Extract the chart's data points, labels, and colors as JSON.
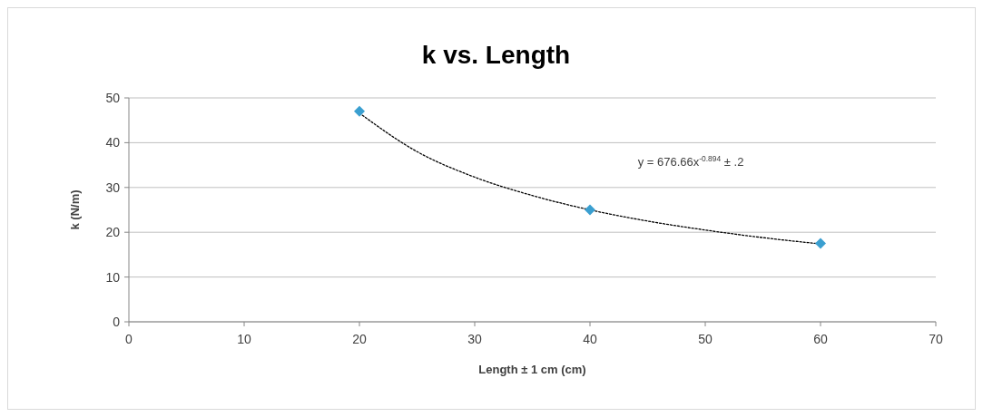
{
  "chart_data": {
    "type": "scatter",
    "title": "k vs. Length",
    "xlabel": "Length ± 1 cm (cm)",
    "ylabel": "k (N/m)",
    "x": [
      20,
      40,
      60
    ],
    "series": [
      {
        "color": "#3a9fd0",
        "marker": "diamond",
        "values": [
          47,
          25,
          17.5
        ]
      },
      {
        "type": "line",
        "color": "#000000",
        "line_style": "dotted",
        "marker": "none",
        "x": [
          20,
          25,
          30,
          35,
          40,
          45,
          50,
          55,
          60
        ],
        "values": [
          46.6,
          38,
          32.3,
          28.2,
          25,
          22.5,
          20.5,
          18.8,
          17.4
        ]
      }
    ],
    "xlim": [
      0,
      70
    ],
    "xticks": [
      0,
      10,
      20,
      30,
      40,
      50,
      60,
      70
    ],
    "ylim": [
      0,
      50
    ],
    "yticks": [
      0,
      10,
      20,
      30,
      40,
      50
    ],
    "grid": "y",
    "annotations": [
      "y = 676.66x$^{-0.894}$ ± .2"
    ]
  }
}
